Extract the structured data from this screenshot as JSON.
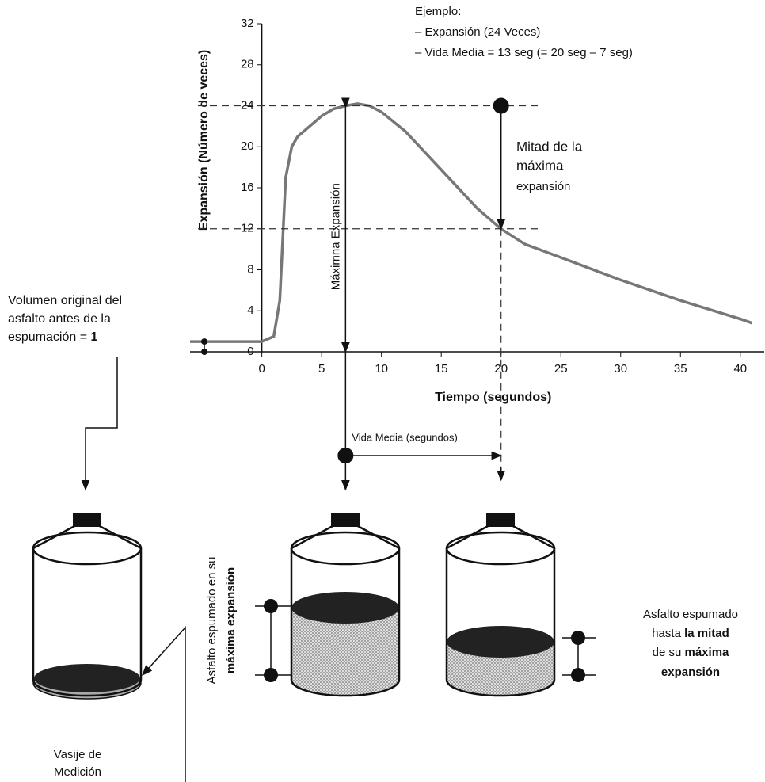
{
  "chart_data": {
    "type": "line",
    "x": [
      -6,
      0,
      1,
      1.5,
      2,
      2.5,
      3,
      4,
      5,
      6,
      7,
      8,
      9,
      10,
      12,
      14,
      16,
      18,
      20,
      22,
      25,
      30,
      35,
      40,
      41
    ],
    "values": [
      1,
      1,
      1.5,
      5,
      17,
      20,
      21,
      22,
      23,
      23.7,
      24,
      24.2,
      24,
      23.4,
      21.5,
      19,
      16.5,
      14,
      12,
      10.5,
      9.2,
      7,
      5,
      3.2,
      2.8
    ],
    "color": "#777777",
    "xlim": [
      -6,
      42
    ],
    "ylim": [
      0,
      32
    ],
    "xticks": [
      0,
      5,
      10,
      15,
      20,
      25,
      30,
      35,
      40
    ],
    "yticks": [
      0,
      4,
      8,
      12,
      16,
      20,
      24,
      28,
      32
    ],
    "xlabel": "Tiempo (segundos)",
    "ylabel": "Expansión (Número de veces)",
    "max_expansion": 24,
    "half_expansion": 12,
    "t_max": 7,
    "t_half": 20,
    "max_label": "Máximna Expansión",
    "half_label": [
      "Mitad de la",
      "máxima",
      "expansión"
    ],
    "example": [
      "Ejemplo:",
      "– Expansión (24 Veces)",
      "– Vida Media = 13 seg (= 20 seg – 7 seg)"
    ],
    "half_life_label": "Vida Media (segundos)"
  },
  "left_note": {
    "l1": "Volumen original del",
    "l2": "asfalto antes de la",
    "l3a": "espumación =",
    "l3b": "1"
  },
  "vessel_label": [
    "Vasije de",
    "Medición"
  ],
  "middle_note": {
    "a": "Asfalto espumado en su",
    "b": "máxima",
    "c": "expansión"
  },
  "right_note": {
    "l1": "Asfalto espumado",
    "l2a": "hasta",
    "l2b": "la mitad",
    "l3a": "de su",
    "l3b": "máxima",
    "l4": "expansión"
  }
}
